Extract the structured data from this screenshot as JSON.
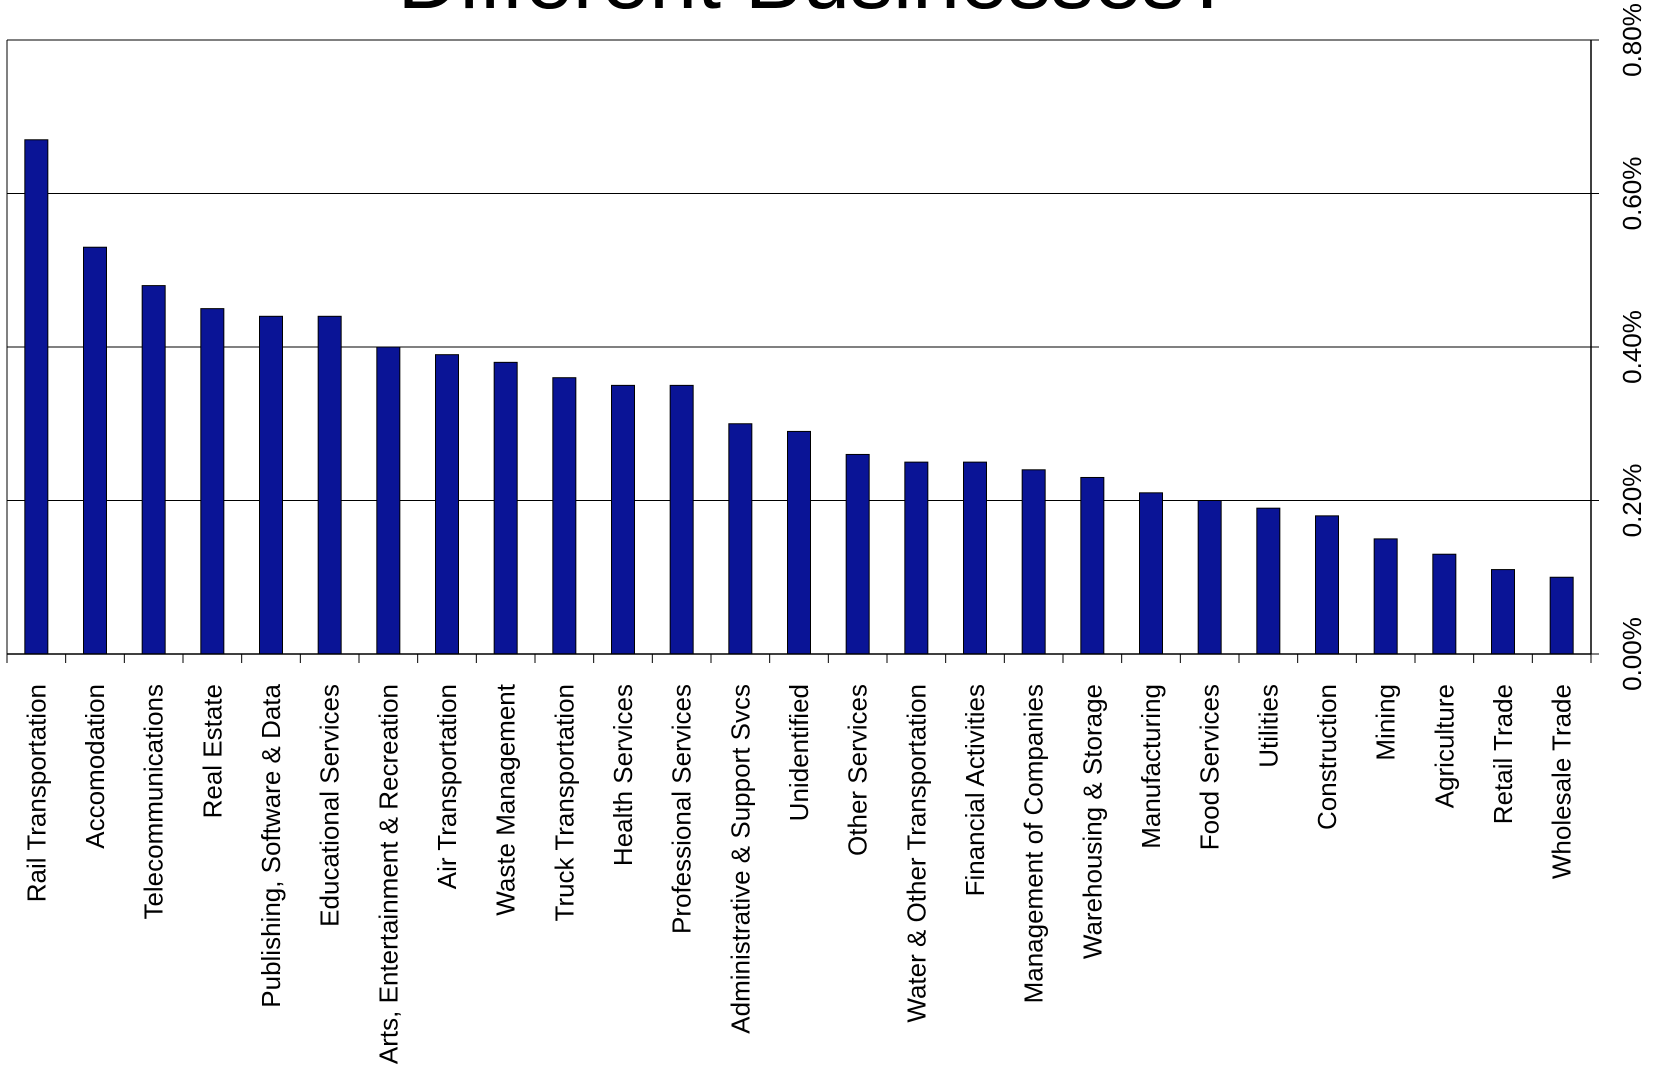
{
  "chart_data": {
    "type": "bar",
    "title": "Different Businesses?",
    "categories": [
      "Rail Transportation",
      "Accomodation",
      "Telecommunications",
      "Real Estate",
      "Publishing, Software & Data",
      "Educational Services",
      "Arts, Entertainment & Recreation",
      "Air Transportation",
      "Waste Management",
      "Truck Transportation",
      "Health Services",
      "Professional Services",
      "Administrative & Support Svcs",
      "Unidentified",
      "Other Services",
      "Water & Other Transportation",
      "Financial Activities",
      "Management of Companies",
      "Warehousing & Storage",
      "Manufacturing",
      "Food Services",
      "Utilities",
      "Construction",
      "Mining",
      "Agriculture",
      "Retail Trade",
      "Wholesale Trade"
    ],
    "values": [
      0.67,
      0.53,
      0.48,
      0.45,
      0.44,
      0.44,
      0.4,
      0.39,
      0.38,
      0.36,
      0.35,
      0.35,
      0.3,
      0.29,
      0.26,
      0.25,
      0.25,
      0.24,
      0.23,
      0.21,
      0.2,
      0.19,
      0.18,
      0.15,
      0.13,
      0.11,
      0.1
    ],
    "y_ticks": [
      "0.00%",
      "0.20%",
      "0.40%",
      "0.60%",
      "0.80%"
    ],
    "y_tick_values": [
      0,
      0.2,
      0.4,
      0.6,
      0.8
    ],
    "ylim": [
      0,
      0.8
    ],
    "y_axis_side": "right",
    "xlabel": "",
    "ylabel": "",
    "grid": true,
    "legend": "none",
    "colors": {
      "bar": "#0A1496",
      "bar_border": "#000000",
      "grid": "#000000",
      "axis": "#000000"
    }
  }
}
